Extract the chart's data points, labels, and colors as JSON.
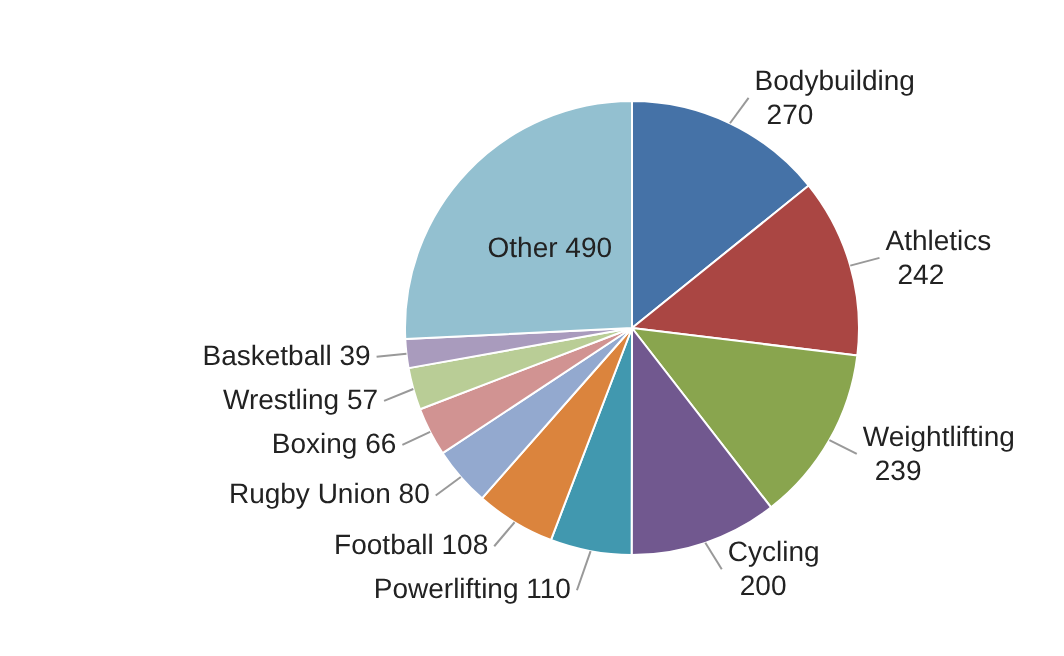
{
  "chart_data": {
    "type": "pie",
    "categories": [
      "Bodybuilding",
      "Athletics",
      "Weightlifting",
      "Cycling",
      "Powerlifting",
      "Football",
      "Rugby Union",
      "Boxing",
      "Wrestling",
      "Basketball",
      "Other"
    ],
    "values": [
      270,
      242,
      239,
      200,
      110,
      108,
      80,
      66,
      57,
      39,
      490
    ],
    "colors": [
      "#4572a7",
      "#aa4643",
      "#89a54e",
      "#71588f",
      "#4198af",
      "#db843d",
      "#93a9cf",
      "#d19392",
      "#b9cd96",
      "#a99bbd",
      "#93c0d0"
    ],
    "data_labels": true,
    "legend": false
  }
}
